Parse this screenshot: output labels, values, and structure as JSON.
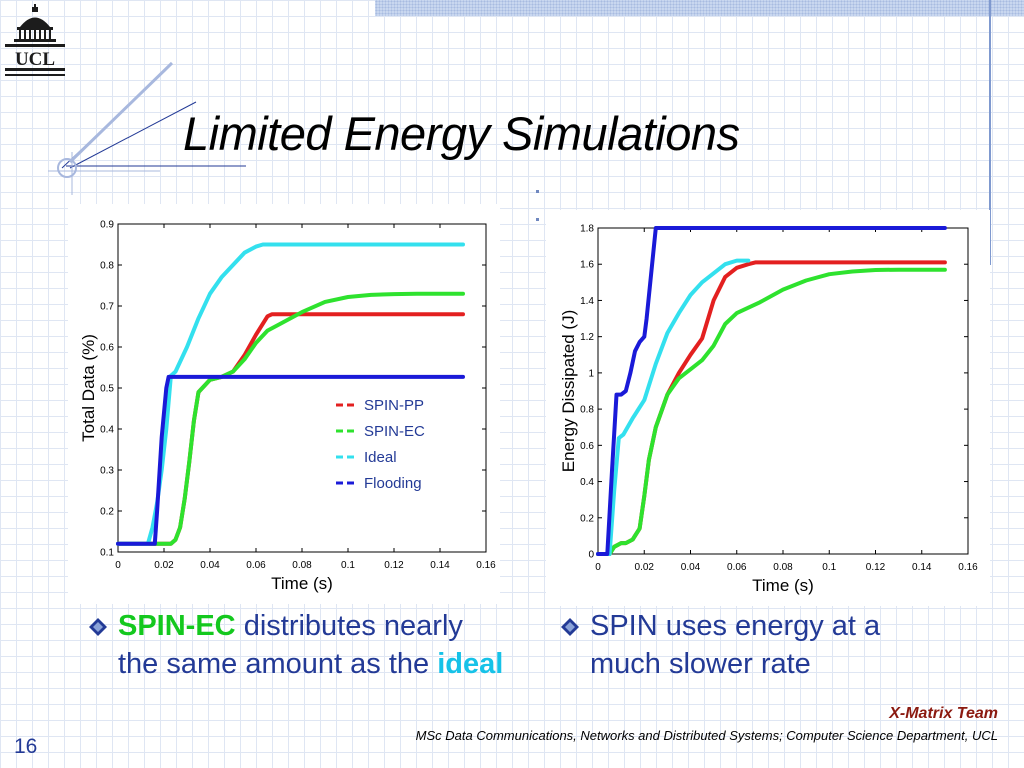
{
  "slide": {
    "logo_text": "UCL",
    "title": "Limited Energy Simulations",
    "page_number": "16",
    "team": "X-Matrix Team",
    "footer": "MSc Data Communications, Networks and Distributed Systems; Computer Science Department, UCL"
  },
  "bullets": [
    {
      "parts": [
        {
          "text": "SPIN-EC",
          "style": "green"
        },
        {
          "text": " distributes nearly the same amount as the ",
          "style": "normal"
        },
        {
          "text": "ideal",
          "style": "cyan"
        }
      ]
    },
    {
      "parts": [
        {
          "text": "SPIN uses energy at a much slower rate",
          "style": "normal"
        }
      ]
    }
  ],
  "colors": {
    "spin_pp": "#e32020",
    "spin_ec": "#2ee22e",
    "ideal": "#33e0ee",
    "flooding": "#1a1ad8",
    "bullet_text": "#233a96",
    "bullet_marker": "#233a96",
    "team_text": "#8b1a10"
  },
  "chart_data": [
    {
      "type": "line",
      "xlabel": "Time (s)",
      "ylabel": "Total Data (%)",
      "xlim": [
        0,
        0.16
      ],
      "ylim": [
        0.1,
        0.9
      ],
      "xticks": [
        0,
        0.02,
        0.04,
        0.06,
        0.08,
        0.1,
        0.12,
        0.14,
        0.16
      ],
      "xtick_labels": [
        "0",
        "0.02",
        "0.04",
        "0.06",
        "0.08",
        "0.1",
        "0.12",
        "0.14",
        "0.16"
      ],
      "yticks": [
        0.1,
        0.2,
        0.3,
        0.4,
        0.5,
        0.6,
        0.7,
        0.8,
        0.9
      ],
      "ytick_labels": [
        "0.1",
        "0.2",
        "0.3",
        "0.4",
        "0.5",
        "0.6",
        "0.7",
        "0.8",
        "0.9"
      ],
      "grid": false,
      "legend": "center-right",
      "series": [
        {
          "name": "SPIN-PP",
          "color_key": "spin_pp",
          "x": [
            0,
            0.023,
            0.025,
            0.027,
            0.029,
            0.031,
            0.033,
            0.035,
            0.04,
            0.045,
            0.05,
            0.055,
            0.06,
            0.065,
            0.067,
            0.1,
            0.15
          ],
          "y": [
            0.12,
            0.12,
            0.13,
            0.16,
            0.23,
            0.32,
            0.42,
            0.49,
            0.52,
            0.527,
            0.54,
            0.58,
            0.63,
            0.675,
            0.68,
            0.68,
            0.68
          ]
        },
        {
          "name": "SPIN-EC",
          "color_key": "spin_ec",
          "x": [
            0,
            0.023,
            0.025,
            0.027,
            0.029,
            0.031,
            0.033,
            0.035,
            0.04,
            0.045,
            0.05,
            0.055,
            0.06,
            0.065,
            0.07,
            0.08,
            0.09,
            0.1,
            0.11,
            0.12,
            0.13,
            0.15
          ],
          "y": [
            0.12,
            0.12,
            0.13,
            0.16,
            0.23,
            0.32,
            0.42,
            0.49,
            0.52,
            0.527,
            0.54,
            0.57,
            0.61,
            0.64,
            0.655,
            0.685,
            0.71,
            0.722,
            0.727,
            0.729,
            0.73,
            0.73
          ]
        },
        {
          "name": "Ideal",
          "color_key": "ideal",
          "x": [
            0,
            0.013,
            0.015,
            0.017,
            0.019,
            0.021,
            0.023,
            0.025,
            0.03,
            0.035,
            0.04,
            0.045,
            0.05,
            0.055,
            0.06,
            0.063,
            0.08,
            0.1,
            0.15
          ],
          "y": [
            0.12,
            0.12,
            0.16,
            0.22,
            0.3,
            0.4,
            0.53,
            0.54,
            0.6,
            0.67,
            0.73,
            0.77,
            0.8,
            0.83,
            0.845,
            0.85,
            0.85,
            0.85,
            0.85
          ]
        },
        {
          "name": "Flooding",
          "color_key": "flooding",
          "x": [
            0,
            0.016,
            0.017,
            0.019,
            0.021,
            0.022,
            0.15
          ],
          "y": [
            0.12,
            0.12,
            0.2,
            0.38,
            0.5,
            0.527,
            0.527
          ]
        }
      ]
    },
    {
      "type": "line",
      "xlabel": "Time (s)",
      "ylabel": "Energy Dissipated (J)",
      "xlim": [
        0,
        0.16
      ],
      "ylim": [
        0,
        1.8
      ],
      "xticks": [
        0,
        0.02,
        0.04,
        0.06,
        0.08,
        0.1,
        0.12,
        0.14,
        0.16
      ],
      "xtick_labels": [
        "0",
        "0.02",
        "0.04",
        "0.06",
        "0.08",
        "0.1",
        "0.12",
        "0.14",
        "0.16"
      ],
      "yticks": [
        0,
        0.2,
        0.4,
        0.6,
        0.8,
        1.0,
        1.2,
        1.4,
        1.6,
        1.8
      ],
      "ytick_labels": [
        "0",
        "0.2",
        "0.4",
        "0.6",
        "0.8",
        "1",
        "1.2",
        "1.4",
        "1.6",
        "1.8"
      ],
      "grid": false,
      "legend": "none",
      "series": [
        {
          "name": "SPIN-PP",
          "color_key": "spin_pp",
          "x": [
            0,
            0.005,
            0.007,
            0.01,
            0.012,
            0.015,
            0.018,
            0.02,
            0.022,
            0.025,
            0.03,
            0.035,
            0.04,
            0.045,
            0.05,
            0.055,
            0.06,
            0.065,
            0.068,
            0.08,
            0.1,
            0.12,
            0.15
          ],
          "y": [
            0,
            0,
            0.04,
            0.06,
            0.06,
            0.08,
            0.14,
            0.32,
            0.52,
            0.7,
            0.88,
            1.0,
            1.1,
            1.19,
            1.4,
            1.53,
            1.58,
            1.6,
            1.61,
            1.61,
            1.61,
            1.61,
            1.61
          ]
        },
        {
          "name": "SPIN-EC",
          "color_key": "spin_ec",
          "x": [
            0,
            0.005,
            0.007,
            0.01,
            0.012,
            0.015,
            0.018,
            0.02,
            0.022,
            0.025,
            0.03,
            0.035,
            0.04,
            0.045,
            0.05,
            0.055,
            0.06,
            0.065,
            0.07,
            0.08,
            0.09,
            0.1,
            0.11,
            0.12,
            0.13,
            0.15
          ],
          "y": [
            0,
            0,
            0.04,
            0.06,
            0.06,
            0.08,
            0.14,
            0.32,
            0.52,
            0.7,
            0.88,
            0.97,
            1.02,
            1.07,
            1.15,
            1.27,
            1.33,
            1.36,
            1.39,
            1.46,
            1.51,
            1.545,
            1.56,
            1.568,
            1.57,
            1.57
          ]
        },
        {
          "name": "Ideal",
          "color_key": "ideal",
          "x": [
            0,
            0.005,
            0.007,
            0.009,
            0.011,
            0.015,
            0.02,
            0.025,
            0.03,
            0.035,
            0.04,
            0.045,
            0.05,
            0.055,
            0.06,
            0.065
          ],
          "y": [
            0,
            0,
            0.35,
            0.64,
            0.66,
            0.75,
            0.85,
            1.05,
            1.22,
            1.33,
            1.43,
            1.5,
            1.55,
            1.6,
            1.62,
            1.62
          ]
        },
        {
          "name": "Flooding",
          "color_key": "flooding",
          "x": [
            0,
            0.004,
            0.006,
            0.008,
            0.01,
            0.012,
            0.014,
            0.016,
            0.018,
            0.02,
            0.021,
            0.023,
            0.025,
            0.027,
            0.15
          ],
          "y": [
            0,
            0,
            0.45,
            0.88,
            0.88,
            0.9,
            1.0,
            1.12,
            1.17,
            1.2,
            1.3,
            1.55,
            1.8,
            1.8,
            1.8
          ]
        }
      ]
    }
  ]
}
